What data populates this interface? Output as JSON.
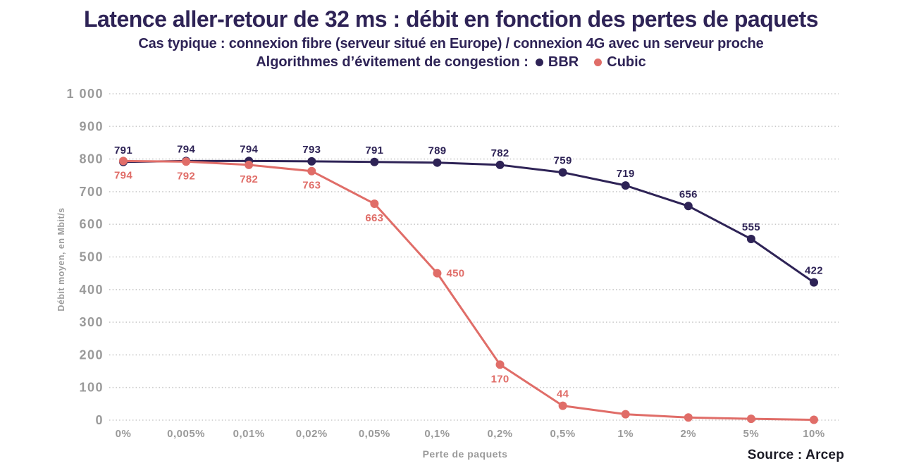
{
  "header": {
    "title": "Latence aller-retour de 32 ms : débit en fonction des pertes de paquets",
    "subtitle": "Cas typique : connexion fibre (serveur situé en Europe) / connexion 4G avec un serveur proche",
    "legend_prefix": "Algorithmes d’évitement de congestion :",
    "legend": [
      {
        "label": "BBR",
        "color": "#2e2356"
      },
      {
        "label": "Cubic",
        "color": "#e06d68"
      }
    ]
  },
  "footer": {
    "source_label": "Source : Arcep"
  },
  "colors": {
    "navy": "#2e2356",
    "salmon": "#e06d68",
    "axis_text_gray": "#9a9a9a",
    "gridline_gray": "#c9c9c9",
    "background": "#ffffff"
  },
  "chart_data": {
    "type": "line",
    "title": "Latence aller-retour de 32 ms : débit en fonction des pertes de paquets",
    "categories": [
      "0%",
      "0,005%",
      "0,01%",
      "0,02%",
      "0,05%",
      "0,1%",
      "0,2%",
      "0,5%",
      "1%",
      "2%",
      "5%",
      "10%"
    ],
    "series": [
      {
        "name": "BBR",
        "color": "#2e2356",
        "values": [
          791,
          794,
          794,
          793,
          791,
          789,
          782,
          759,
          719,
          656,
          555,
          422
        ],
        "point_labels": [
          "791",
          "794",
          "794",
          "793",
          "791",
          "789",
          "782",
          "759",
          "719",
          "656",
          "555",
          "422"
        ],
        "label_positions": [
          "above",
          "above",
          "above",
          "above",
          "above",
          "above",
          "above",
          "above",
          "above",
          "above",
          "above",
          "above"
        ]
      },
      {
        "name": "Cubic",
        "color": "#e06d68",
        "values": [
          794,
          792,
          782,
          763,
          663,
          450,
          170,
          44,
          18,
          8,
          4,
          1
        ],
        "point_labels": [
          "794",
          "792",
          "782",
          "763",
          "663",
          "450",
          "170",
          "44",
          "",
          "",
          "",
          ""
        ],
        "label_positions": [
          "below",
          "below",
          "below",
          "below",
          "below",
          "right",
          "below",
          "above",
          "none",
          "none",
          "none",
          "none"
        ]
      }
    ],
    "xlabel": "Perte de paquets",
    "ylabel": "Débit moyen, en Mbit/s",
    "ylim": [
      0,
      1000
    ],
    "ytick_step": 100,
    "ytick_labels": [
      "0",
      "100",
      "200",
      "300",
      "400",
      "500",
      "600",
      "700",
      "800",
      "900",
      "1 000"
    ],
    "grid": "horizontal-dotted",
    "legend_position": "in-subtitle"
  }
}
